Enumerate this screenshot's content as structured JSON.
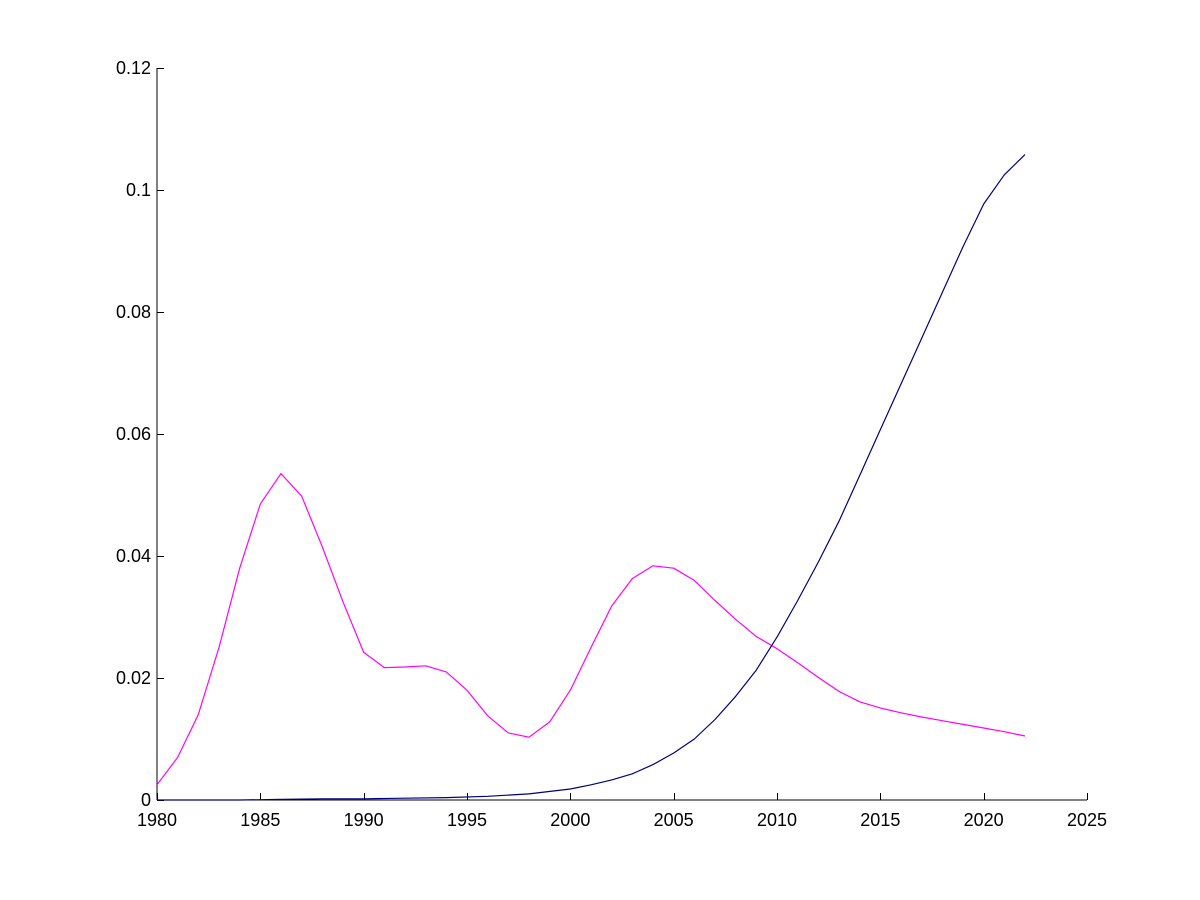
{
  "chart_data": {
    "type": "line",
    "title": "",
    "xlabel": "",
    "ylabel": "",
    "xlim": [
      1980,
      2025
    ],
    "ylim": [
      0,
      0.12
    ],
    "grid": false,
    "x_ticks": [
      1980,
      1985,
      1990,
      1995,
      2000,
      2005,
      2010,
      2015,
      2020,
      2025
    ],
    "y_ticks": [
      0,
      0.02,
      0.04,
      0.06,
      0.08,
      0.1,
      0.12
    ],
    "x_tick_labels": [
      "1980",
      "1985",
      "1990",
      "1995",
      "2000",
      "2005",
      "2010",
      "2015",
      "2020",
      "2025"
    ],
    "y_tick_labels": [
      "0",
      "0.02",
      "0.04",
      "0.06",
      "0.08",
      "0.1",
      "0.12"
    ],
    "series": [
      {
        "color": "#ff00ff",
        "x": [
          1980,
          1981,
          1982,
          1983,
          1984,
          1985,
          1986,
          1987,
          1988,
          1989,
          1990,
          1991,
          1992,
          1993,
          1994,
          1995,
          1996,
          1997,
          1998,
          1999,
          2000,
          2001,
          2002,
          2003,
          2004,
          2005,
          2006,
          2007,
          2008,
          2009,
          2010,
          2011,
          2012,
          2013,
          2014,
          2015,
          2016,
          2017,
          2018,
          2019,
          2020,
          2021,
          2022
        ],
        "values": [
          0.0025,
          0.007,
          0.014,
          0.025,
          0.038,
          0.0485,
          0.0535,
          0.0498,
          0.0415,
          0.0325,
          0.0242,
          0.0217,
          0.0218,
          0.022,
          0.021,
          0.018,
          0.0138,
          0.011,
          0.0103,
          0.0128,
          0.018,
          0.025,
          0.0318,
          0.0363,
          0.0384,
          0.038,
          0.036,
          0.0327,
          0.0296,
          0.0268,
          0.0248,
          0.0225,
          0.0201,
          0.0178,
          0.0161,
          0.0151,
          0.0143,
          0.0136,
          0.013,
          0.0124,
          0.0118,
          0.0112,
          0.0105
        ]
      },
      {
        "color": "#00007f",
        "x": [
          1980,
          1982,
          1984,
          1986,
          1988,
          1990,
          1992,
          1994,
          1996,
          1998,
          2000,
          2001,
          2002,
          2003,
          2004,
          2005,
          2006,
          2007,
          2008,
          2009,
          2010,
          2011,
          2012,
          2013,
          2014,
          2015,
          2016,
          2017,
          2018,
          2019,
          2020,
          2021,
          2022
        ],
        "values": [
          0,
          0,
          0,
          0.0001,
          0.0002,
          0.0002,
          0.0003,
          0.0004,
          0.0006,
          0.001,
          0.0018,
          0.0025,
          0.0033,
          0.0043,
          0.0058,
          0.0077,
          0.01,
          0.0132,
          0.017,
          0.0213,
          0.0267,
          0.0327,
          0.039,
          0.0457,
          0.0532,
          0.0607,
          0.0682,
          0.0757,
          0.0832,
          0.0907,
          0.0977,
          0.1025,
          0.1058
        ]
      }
    ]
  }
}
